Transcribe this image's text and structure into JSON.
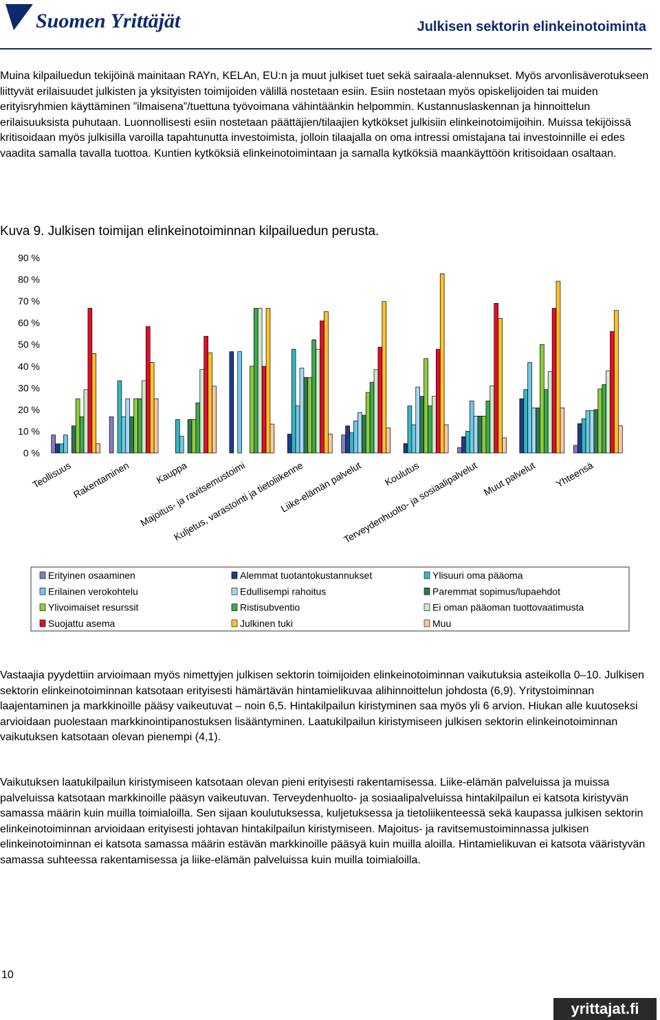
{
  "header": {
    "logo": "Suomen Yrittäjät",
    "title": "Julkisen sektorin elinkeinotoiminta"
  },
  "paragraphs_top": [
    "Muina kilpailuedun tekijöinä mainitaan RAYn, KELAn, EU:n ja muut julkiset tuet sekä sairaala-alennukset. Myös arvonlisäverotukseen liittyvät erilaisuudet julkisten ja yksityisten toimijoiden välillä nostetaan esiin. Esiin nostetaan myös opiskelijoiden tai muiden erityisryhmien käyttäminen ”ilmaisena”/tuettuna työvoimana vähintäänkin helpommin. Kustannuslaskennan ja hinnoittelun erilaisuuksista puhutaan. Luonnollisesti esiin nostetaan päättäjien/tilaajien kytkökset julkisiin elinkeinotoimijoihin. Muissa tekijöissä kritisoidaan myös julkisilla varoilla tapahtunutta investoimista, jolloin tilaajalla on oma intressi omistajana tai investoinnille ei edes vaadita samalla tavalla tuottoa. Kuntien kytköksiä elinkeinotoimintaan ja samalla kytköksiä maankäyttöön kritisoidaan osaltaan."
  ],
  "caption": "Kuva 9. Julkisen toimijan elinkeinotoiminnan kilpailuedun perusta.",
  "chart_data": {
    "type": "bar",
    "categories": [
      "Teollisuus",
      "Rakentaminen",
      "Kauppa",
      "Majoitus- ja ravitsemustoimi",
      "Kuljetus, varastointi ja tietoliikenne",
      "Liike-elämän palvelut",
      "Koulutus",
      "Terveydenhuolto- ja sosiaalipalvelut",
      "Muut palvelut",
      "Yhteensä"
    ],
    "series": [
      {
        "name": "Erityinen osaaminen",
        "color": "#8080c0",
        "values": [
          8.3,
          16.7,
          0,
          0,
          0,
          8.3,
          0,
          2.5,
          0,
          3.5
        ]
      },
      {
        "name": "Alemmat tuotantokustannukset",
        "color": "#1f3a8a",
        "values": [
          4.2,
          0,
          0,
          46.7,
          8.7,
          12.5,
          4.3,
          7.5,
          25,
          13.5
        ]
      },
      {
        "name": "Ylisuuri oma pääoma",
        "color": "#33b8c0",
        "values": [
          4.2,
          33.3,
          15.4,
          0,
          47.8,
          9.3,
          21.7,
          10,
          29.2,
          15.8
        ]
      },
      {
        "name": "Erilainen verokohtelu",
        "color": "#70c8e8",
        "values": [
          8.3,
          16.7,
          7.7,
          46.7,
          21.7,
          14.8,
          13,
          24,
          41.7,
          19.5
        ]
      },
      {
        "name": "Edullisempi rahoitus",
        "color": "#a8d8f0",
        "values": [
          0,
          25,
          0,
          0,
          39.1,
          18.6,
          30.4,
          17,
          20.8,
          19.5
        ]
      },
      {
        "name": "Paremmat sopimus/lupaehdot",
        "color": "#2e7a50",
        "values": [
          12.5,
          16.7,
          15.4,
          0,
          34.8,
          17.4,
          26.1,
          17,
          20.8,
          20
        ]
      },
      {
        "name": "Ylivoimaiset resurssit",
        "color": "#8ccc3c",
        "values": [
          25,
          25,
          15.4,
          40,
          34.8,
          27.9,
          43.5,
          17,
          50,
          29.5
        ]
      },
      {
        "name": "Ristisubventio",
        "color": "#40a850",
        "values": [
          16.7,
          25,
          23.1,
          66.7,
          52.2,
          32.6,
          21.7,
          24,
          29.2,
          31.5
        ]
      },
      {
        "name": "Ei oman pääoman tuottovaatimusta",
        "color": "#cfe8c8",
        "values": [
          29.2,
          33.3,
          38.5,
          66.7,
          47.8,
          38.4,
          26.1,
          31,
          37.5,
          37.8
        ]
      },
      {
        "name": "Suojattu asema",
        "color": "#e0102a",
        "values": [
          66.7,
          58.3,
          53.8,
          40,
          60.9,
          48.8,
          47.8,
          69,
          66.7,
          56
        ]
      },
      {
        "name": "Julkinen tuki",
        "color": "#ffc22a",
        "values": [
          45.8,
          41.7,
          46.2,
          66.7,
          65.2,
          69.8,
          82.6,
          62,
          79.2,
          65.7
        ]
      },
      {
        "name": "Muu",
        "color": "#f8c8a0",
        "values": [
          4.2,
          25,
          30.8,
          13.3,
          8.7,
          11.6,
          13,
          7,
          20.8,
          12.5
        ]
      }
    ],
    "ylim": [
      0,
      90
    ],
    "yticks": [
      {
        "value": 0,
        "label": "0 %"
      },
      {
        "value": 10,
        "label": "10 %"
      },
      {
        "value": 20,
        "label": "20 %"
      },
      {
        "value": 30,
        "label": "30 %"
      },
      {
        "value": 40,
        "label": "40 %"
      },
      {
        "value": 50,
        "label": "50 %"
      },
      {
        "value": 60,
        "label": "60 %"
      },
      {
        "value": 70,
        "label": "70 %"
      },
      {
        "value": 80,
        "label": "80 %"
      },
      {
        "value": 90,
        "label": "90 %"
      }
    ]
  },
  "paragraphs_bottom": [
    "Vastaajia pyydettiin arvioimaan myös nimettyjen julkisen sektorin toimijoiden elinkeinotoiminnan vaikutuksia asteikolla 0–10. Julkisen sektorin elinkeinotoiminnan katsotaan erityisesti hämärtävän hintamielikuvaa alihinnoittelun johdosta (6,9). Yritystoiminnan laajentaminen ja markkinoille pääsy vaikeutuvat – noin 6,5. Hintakilpailun kiristyminen saa myös yli 6 arvion. Hiukan alle kuutoseksi arvioidaan puolestaan markkinointipanostuksen lisääntyminen. Laatukilpailun kiristymiseen julkisen sektorin elinkeinotoiminnan vaikutuksen katsotaan olevan pienempi (4,1).",
    "Vaikutuksen laatukilpailun kiristymiseen katsotaan olevan pieni erityisesti rakentamisessa. Liike-elämän palveluissa ja muissa palveluissa katsotaan markkinoille pääsyn vaikeutuvan. Terveydenhuolto- ja sosiaalipalveluissa hintakilpailun ei katsota kiristyvän samassa määrin kuin muilla toimialoilla. Sen sijaan koulutuksessa, kuljetuksessa ja tietoliikenteessä sekä kaupassa julkisen sektorin elinkeinotoiminnan arvioidaan erityisesti johtavan hintakilpailun kiristymiseen. Majoitus- ja ravitsemustoiminnassa julkisen elinkeinotoiminnan ei katsota samassa määrin estävän markkinoille pääsyä kuin muilla aloilla. Hintamielikuvan ei katsota vääristyvän samassa suhteessa rakentamisessa ja liike-elämän palveluissa kuin muilla toimialoilla."
  ],
  "footer": {
    "page_number": "10",
    "logo": "yrittajat.fi"
  }
}
